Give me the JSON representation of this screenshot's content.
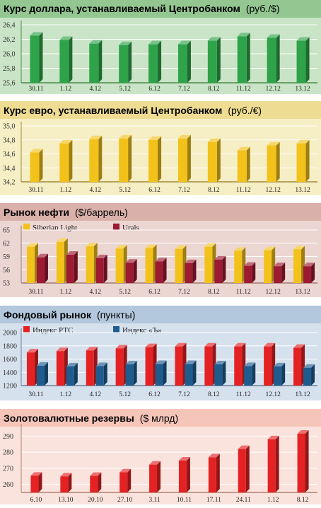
{
  "panels": [
    {
      "title_bold": "Курс доллара, устанавливаемый Центробанком",
      "title_normal": "(руб./$)",
      "colors": {
        "header": "#93c691",
        "plot": "#c9e4c6",
        "grid": "#ffffff",
        "axis": "#4a8a4a",
        "bar": "#2fa34a"
      },
      "chart_data": {
        "type": "bar",
        "categories": [
          "30.11",
          "1.12",
          "4.12",
          "5.12",
          "6.12",
          "7.12",
          "8.12",
          "11.12",
          "12.12",
          "13.12"
        ],
        "ylim": [
          25.6,
          26.4
        ],
        "yticks": [
          "25,6",
          "25,8",
          "26,0",
          "26,2",
          "26,4"
        ],
        "series": [
          {
            "values": [
              26.25,
              26.19,
              26.14,
              26.12,
              26.13,
              26.13,
              26.18,
              26.24,
              26.22,
              26.18
            ]
          }
        ]
      }
    },
    {
      "title_bold": "Курс евро, устанавливаемый Центробанком",
      "title_normal": "(руб./€)",
      "colors": {
        "header": "#eddc92",
        "plot": "#f6eec4",
        "grid": "#ffffff",
        "axis": "#a08a3a",
        "bar": "#f2c21b"
      },
      "chart_data": {
        "type": "bar",
        "categories": [
          "30.11",
          "1.12",
          "4.12",
          "5.12",
          "6.12",
          "7.12",
          "8.12",
          "11.12",
          "12.12",
          "13.12"
        ],
        "ylim": [
          34.2,
          35.0
        ],
        "yticks": [
          "34,2",
          "34,4",
          "34,6",
          "34,8",
          "35,0"
        ],
        "series": [
          {
            "values": [
              34.62,
              34.75,
              34.81,
              34.82,
              34.8,
              34.82,
              34.77,
              34.65,
              34.72,
              34.75
            ]
          }
        ]
      }
    },
    {
      "title_bold": "Рынок нефти",
      "title_normal": "($/баррель)",
      "colors": {
        "header": "#d9b1aa",
        "plot": "#ecd6d2",
        "grid": "#ffffff",
        "axis": "#a07a72",
        "bar1": "#f2c21b",
        "bar2": "#9d1a33"
      },
      "legend": [
        "Siberian Light",
        "Urals"
      ],
      "chart_data": {
        "type": "bar",
        "categories": [
          "30.11",
          "1.12",
          "4.12",
          "5.12",
          "6.12",
          "7.12",
          "8.12",
          "11.12",
          "12.12",
          "13.12"
        ],
        "ylim": [
          53,
          65
        ],
        "yticks": [
          "53",
          "56",
          "59",
          "62",
          "65"
        ],
        "series": [
          {
            "name": "Siberian Light",
            "values": [
              61.2,
              62.3,
              61.3,
              60.8,
              60.9,
              60.7,
              61.2,
              60.3,
              60.4,
              60.6
            ]
          },
          {
            "name": "Urals",
            "values": [
              58.8,
              59.4,
              58.6,
              57.6,
              57.9,
              57.5,
              58.3,
              56.9,
              56.8,
              56.8
            ]
          }
        ]
      }
    },
    {
      "title_bold": "Фондовый рынок",
      "title_normal": "(пункты)",
      "colors": {
        "header": "#b3c7dd",
        "plot": "#d6e1ee",
        "grid": "#ffffff",
        "axis": "#6a7f96",
        "bar1": "#e42224",
        "bar2": "#1f5c8e"
      },
      "legend": [
        "Индекс РТС",
        "Индекс «Ъ»"
      ],
      "chart_data": {
        "type": "bar",
        "categories": [
          "30.11",
          "1.12",
          "4.12",
          "5.12",
          "6.12",
          "7.12",
          "8.12",
          "11.12",
          "12.12",
          "13.12"
        ],
        "ylim": [
          1200,
          2000
        ],
        "yticks": [
          "1200",
          "1400",
          "1600",
          "1800",
          "2000"
        ],
        "series": [
          {
            "name": "Индекс РТС",
            "values": [
              1700,
              1720,
              1730,
              1760,
              1780,
              1790,
              1790,
              1790,
              1790,
              1770
            ]
          },
          {
            "name": "Индекс «Ъ»",
            "values": [
              1500,
              1490,
              1495,
              1520,
              1525,
              1525,
              1520,
              1495,
              1490,
              1470
            ]
          }
        ]
      }
    },
    {
      "title_bold": "Золотовалютные резервы",
      "title_normal": "($ млрд)",
      "colors": {
        "header": "#f6c5ba",
        "plot": "#fbe3dd",
        "grid": "#ffffff",
        "axis": "#b08070",
        "bar": "#e42224"
      },
      "chart_data": {
        "type": "bar",
        "categories": [
          "6.10",
          "13.10",
          "20.10",
          "27.10",
          "3.11",
          "10.11",
          "17.11",
          "24.11",
          "1.12",
          "8.12"
        ],
        "ylim": [
          255,
          295
        ],
        "yticks": [
          "260",
          "270",
          "280",
          "290"
        ],
        "series": [
          {
            "values": [
              265.4,
              264.9,
              265.3,
              267.5,
              272.3,
              274.8,
              276.8,
              282.0,
              288.0,
              291.5
            ]
          }
        ]
      }
    }
  ]
}
